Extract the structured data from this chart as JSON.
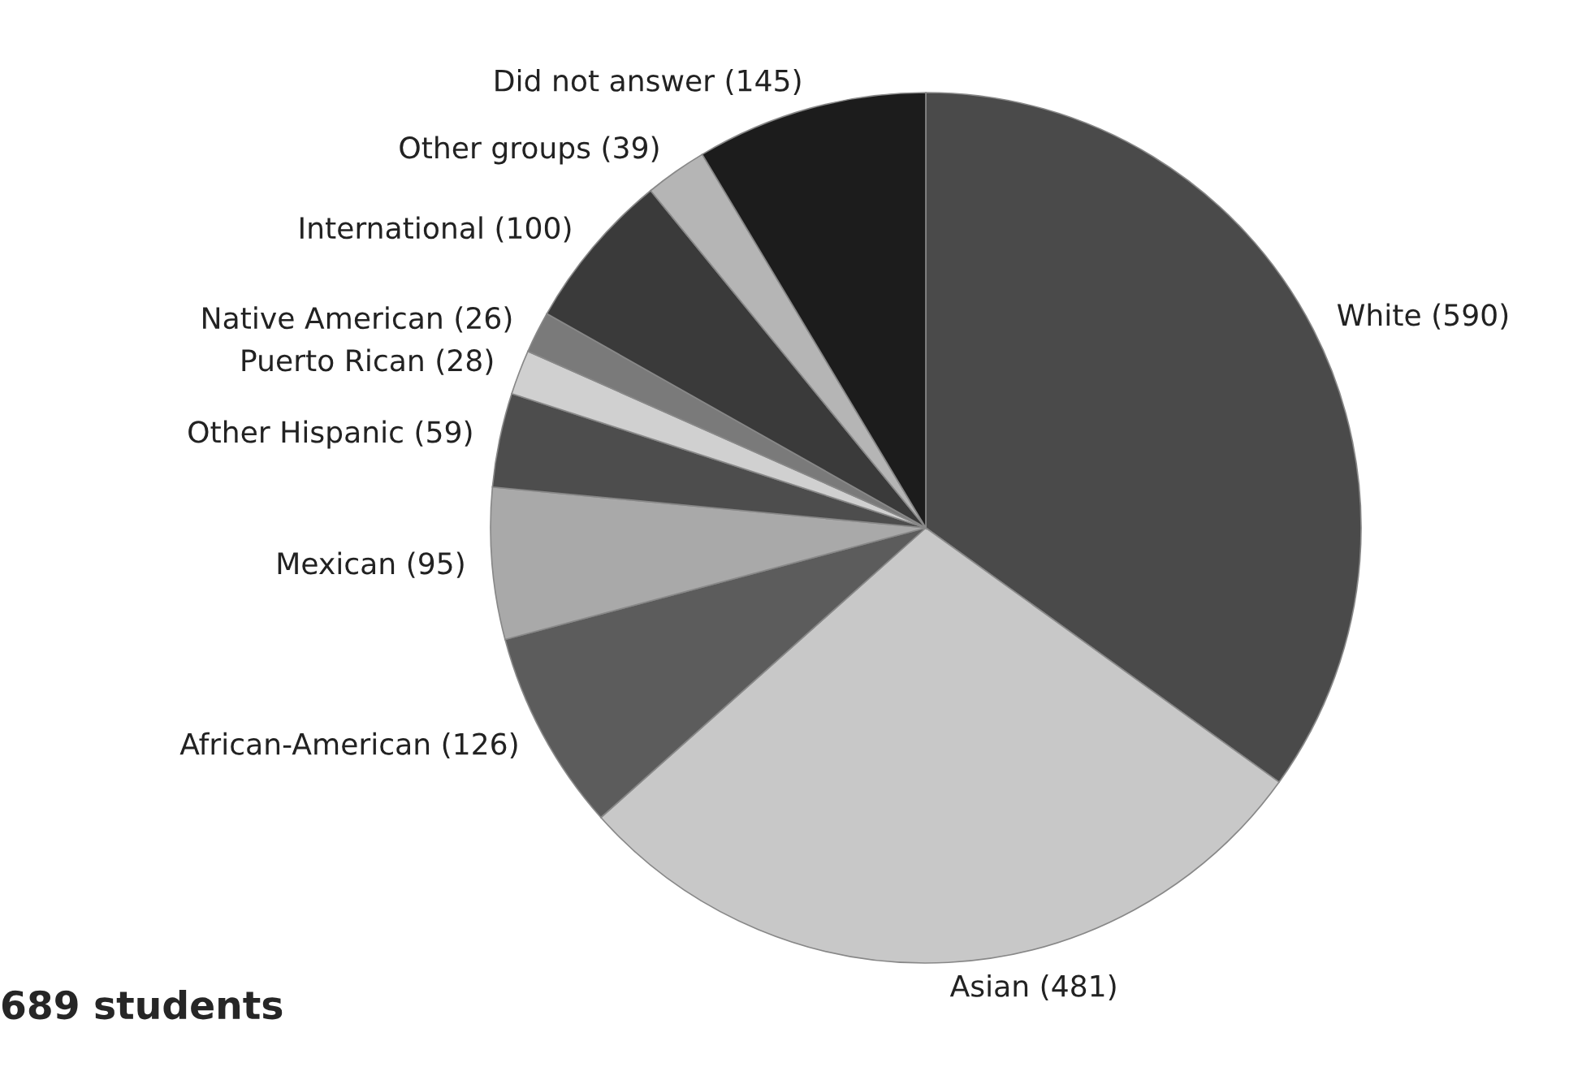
{
  "chart_data": {
    "type": "pie",
    "categories": [
      "White (590)",
      "Asian (481)",
      "African-American (126)",
      "Mexican (95)",
      "Other Hispanic (59)",
      "Puerto Rican (28)",
      "Native American (26)",
      "International (100)",
      "Other groups (39)",
      "Did not answer (145)"
    ],
    "values": [
      590,
      481,
      126,
      95,
      59,
      28,
      26,
      100,
      39,
      145
    ],
    "colors": [
      "#4a4a4a",
      "#c8c8c8",
      "#5c5c5c",
      "#a9a9a9",
      "#4d4d4d",
      "#d0d0d0",
      "#7a7a7a",
      "#3a3a3a",
      "#b5b5b5",
      "#1c1c1c"
    ],
    "annotations": [
      "689 students"
    ]
  }
}
